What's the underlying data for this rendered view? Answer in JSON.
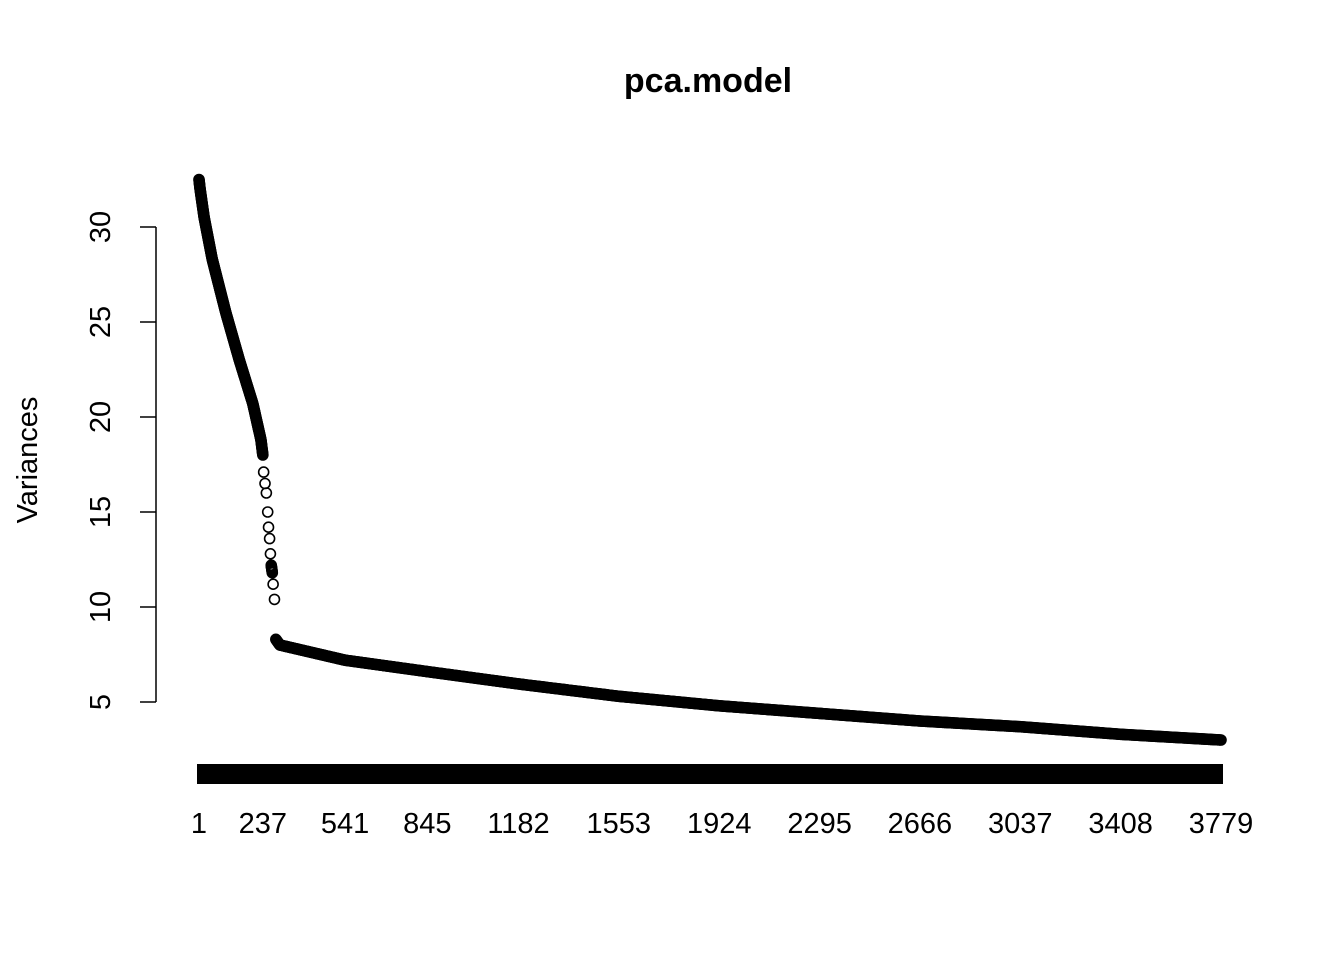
{
  "chart_data": {
    "type": "scatter",
    "title": "pca.model",
    "xlabel": "",
    "ylabel": "Variances",
    "xlim": [
      1,
      3800
    ],
    "ylim": [
      5,
      32.5
    ],
    "x_tick_labels": [
      "1",
      "237",
      "541",
      "845",
      "1182",
      "1553",
      "1924",
      "2295",
      "2666",
      "3037",
      "3408",
      "3779"
    ],
    "y_ticks": [
      5,
      10,
      15,
      20,
      25,
      30
    ],
    "grid": false,
    "legend": "none",
    "point_color": "#000000",
    "bar_strip": "solid black band of bars below the curve",
    "series": [
      {
        "values_by_index": [
          {
            "x": 1,
            "y": 32.5
          },
          {
            "x": 5,
            "y": 32.0
          },
          {
            "x": 20,
            "y": 30.5
          },
          {
            "x": 50,
            "y": 28.3
          },
          {
            "x": 100,
            "y": 25.5
          },
          {
            "x": 150,
            "y": 23.0
          },
          {
            "x": 200,
            "y": 20.7
          },
          {
            "x": 230,
            "y": 18.8
          },
          {
            "x": 237,
            "y": 18.0
          },
          {
            "x": 240,
            "y": 17.1
          },
          {
            "x": 245,
            "y": 16.5
          },
          {
            "x": 250,
            "y": 16.0
          },
          {
            "x": 255,
            "y": 15.0
          },
          {
            "x": 258,
            "y": 14.2
          },
          {
            "x": 262,
            "y": 13.6
          },
          {
            "x": 265,
            "y": 12.8
          },
          {
            "x": 268,
            "y": 12.2
          },
          {
            "x": 272,
            "y": 11.8
          },
          {
            "x": 275,
            "y": 11.2
          },
          {
            "x": 280,
            "y": 10.4
          },
          {
            "x": 285,
            "y": 8.3
          },
          {
            "x": 300,
            "y": 8.0
          },
          {
            "x": 541,
            "y": 7.2
          },
          {
            "x": 845,
            "y": 6.6
          },
          {
            "x": 1182,
            "y": 5.95
          },
          {
            "x": 1553,
            "y": 5.3
          },
          {
            "x": 1924,
            "y": 4.8
          },
          {
            "x": 2295,
            "y": 4.4
          },
          {
            "x": 2666,
            "y": 4.0
          },
          {
            "x": 3037,
            "y": 3.7
          },
          {
            "x": 3408,
            "y": 3.3
          },
          {
            "x": 3779,
            "y": 3.0
          }
        ]
      }
    ]
  }
}
